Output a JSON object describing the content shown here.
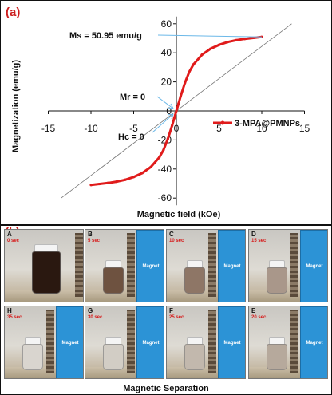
{
  "chart_data": {
    "type": "line",
    "panel_label": "(a)",
    "xlabel": "Magnetic field (kOe)",
    "ylabel": "Magnetization (emu/g)",
    "xlim": [
      -15,
      15
    ],
    "ylim": [
      -65,
      65
    ],
    "xticks": [
      -15,
      -10,
      -5,
      0,
      5,
      10,
      15
    ],
    "yticks": [
      -60,
      -40,
      -20,
      0,
      20,
      40,
      60
    ],
    "xtick_labels": [
      "-15",
      "-10",
      "-5",
      "0",
      "5",
      "10",
      "15"
    ],
    "ytick_labels": [
      "-60",
      "-40",
      "-20",
      "0",
      "20",
      "40",
      "60"
    ],
    "legend_position": "right-center",
    "series": [
      {
        "name": "3-MPA@PMNPs",
        "color": "#e01b1b",
        "x": [
          -10,
          -9,
          -8,
          -7,
          -6,
          -5,
          -4,
          -3,
          -2,
          -1.5,
          -1,
          -0.5,
          -0.25,
          0,
          0.25,
          0.5,
          1,
          1.5,
          2,
          3,
          4,
          5,
          6,
          7,
          8,
          9,
          10
        ],
        "y": [
          -50.95,
          -50.3,
          -49.6,
          -48.7,
          -47.4,
          -45.5,
          -42.8,
          -38.7,
          -32.0,
          -26.8,
          -19.3,
          -10.0,
          -5.0,
          0,
          5.0,
          10.0,
          19.3,
          26.8,
          32.0,
          38.7,
          42.8,
          45.5,
          47.4,
          48.7,
          49.6,
          50.3,
          50.95
        ]
      }
    ],
    "reference_line": {
      "x": [
        -13.5,
        13.5
      ],
      "y": [
        -60,
        60
      ]
    },
    "annotations": [
      {
        "text": "Ms = 50.95 emu/g",
        "points_to": [
          10,
          50.95
        ]
      },
      {
        "text": "Mr = 0",
        "points_to": [
          0,
          0
        ]
      },
      {
        "text": "Hc = 0",
        "points_to": [
          0,
          0
        ]
      }
    ]
  },
  "photo_panel": {
    "panel_label": "(b)",
    "caption": "Magnetic Separation",
    "magnet_label": "Magnet",
    "colors": {
      "magnet": "#2c93d6",
      "time_text": "#d61a1a"
    },
    "frames": [
      {
        "letter": "A",
        "time": "0 sec",
        "tint": "#2a1810",
        "magnet": false
      },
      {
        "letter": "B",
        "time": "5 sec",
        "tint": "#6e5240",
        "magnet": true
      },
      {
        "letter": "C",
        "time": "10 sec",
        "tint": "#8e7666",
        "magnet": true
      },
      {
        "letter": "D",
        "time": "15 sec",
        "tint": "#a9978a",
        "magnet": true
      },
      {
        "letter": "H",
        "time": "35 sec",
        "tint": "#d9d5cf",
        "magnet": true
      },
      {
        "letter": "G",
        "time": "30 sec",
        "tint": "#d2cdc5",
        "magnet": true
      },
      {
        "letter": "F",
        "time": "25 sec",
        "tint": "#c2b8ad",
        "magnet": true
      },
      {
        "letter": "E",
        "time": "20 sec",
        "tint": "#b6a99c",
        "magnet": true
      }
    ]
  }
}
